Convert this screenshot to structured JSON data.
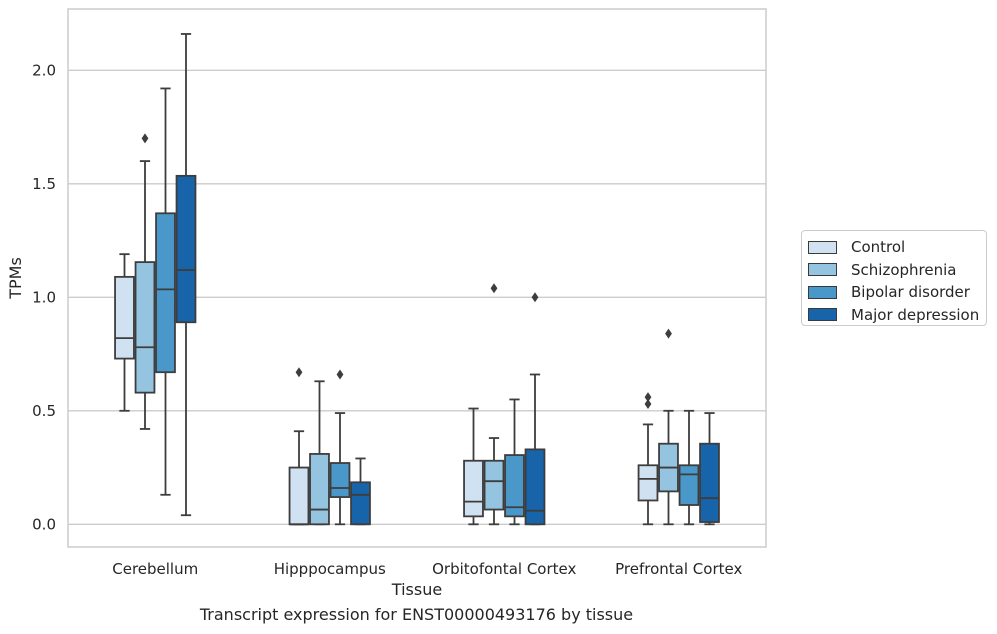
{
  "caption": "Transcript expression for ENST00000493176 by tissue",
  "chart_data": {
    "type": "box",
    "xlabel": "Tissue",
    "ylabel": "TPMs",
    "ylim": [
      -0.1,
      2.27
    ],
    "yticks": [
      0.0,
      0.5,
      1.0,
      1.5,
      2.0
    ],
    "ytick_labels": [
      "0.0",
      "0.5",
      "1.0",
      "1.5",
      "2.0"
    ],
    "grid": "horizontal",
    "legend_position": "right",
    "categories": [
      "Cerebellum",
      "Hipppocampus",
      "Orbitofontal Cortex",
      "Prefrontal Cortex"
    ],
    "series": [
      {
        "name": "Control",
        "color": "#d0e1f2",
        "boxes": [
          {
            "whisker_low": 0.5,
            "q1": 0.73,
            "median": 0.82,
            "q3": 1.09,
            "whisker_high": 1.19,
            "outliers": []
          },
          {
            "whisker_low": 0.0,
            "q1": 0.0,
            "median": 0.0,
            "q3": 0.25,
            "whisker_high": 0.41,
            "outliers": [
              0.67
            ]
          },
          {
            "whisker_low": 0.0,
            "q1": 0.035,
            "median": 0.1,
            "q3": 0.28,
            "whisker_high": 0.51,
            "outliers": []
          },
          {
            "whisker_low": 0.0,
            "q1": 0.105,
            "median": 0.2,
            "q3": 0.26,
            "whisker_high": 0.44,
            "outliers": [
              0.53,
              0.56
            ]
          }
        ]
      },
      {
        "name": "Schizophrenia",
        "color": "#94c4df",
        "boxes": [
          {
            "whisker_low": 0.42,
            "q1": 0.58,
            "median": 0.78,
            "q3": 1.155,
            "whisker_high": 1.6,
            "outliers": [
              1.7
            ]
          },
          {
            "whisker_low": 0.0,
            "q1": 0.0,
            "median": 0.065,
            "q3": 0.31,
            "whisker_high": 0.63,
            "outliers": []
          },
          {
            "whisker_low": 0.0,
            "q1": 0.065,
            "median": 0.19,
            "q3": 0.28,
            "whisker_high": 0.38,
            "outliers": [
              1.04
            ]
          },
          {
            "whisker_low": 0.0,
            "q1": 0.145,
            "median": 0.25,
            "q3": 0.355,
            "whisker_high": 0.5,
            "outliers": [
              0.84
            ]
          }
        ]
      },
      {
        "name": "Bipolar disorder",
        "color": "#4a98c9",
        "boxes": [
          {
            "whisker_low": 0.13,
            "q1": 0.67,
            "median": 1.035,
            "q3": 1.37,
            "whisker_high": 1.92,
            "outliers": []
          },
          {
            "whisker_low": 0.0,
            "q1": 0.12,
            "median": 0.16,
            "q3": 0.27,
            "whisker_high": 0.49,
            "outliers": [
              0.66
            ]
          },
          {
            "whisker_low": 0.0,
            "q1": 0.035,
            "median": 0.075,
            "q3": 0.305,
            "whisker_high": 0.55,
            "outliers": []
          },
          {
            "whisker_low": 0.0,
            "q1": 0.085,
            "median": 0.22,
            "q3": 0.26,
            "whisker_high": 0.5,
            "outliers": []
          }
        ]
      },
      {
        "name": "Major depression",
        "color": "#1764ab",
        "boxes": [
          {
            "whisker_low": 0.04,
            "q1": 0.89,
            "median": 1.12,
            "q3": 1.535,
            "whisker_high": 2.16,
            "outliers": []
          },
          {
            "whisker_low": 0.0,
            "q1": 0.0,
            "median": 0.13,
            "q3": 0.185,
            "whisker_high": 0.29,
            "outliers": []
          },
          {
            "whisker_low": 0.0,
            "q1": 0.0,
            "median": 0.06,
            "q3": 0.33,
            "whisker_high": 0.66,
            "outliers": [
              1.0
            ]
          },
          {
            "whisker_low": 0.0,
            "q1": 0.01,
            "median": 0.115,
            "q3": 0.355,
            "whisker_high": 0.49,
            "outliers": []
          }
        ]
      }
    ]
  }
}
